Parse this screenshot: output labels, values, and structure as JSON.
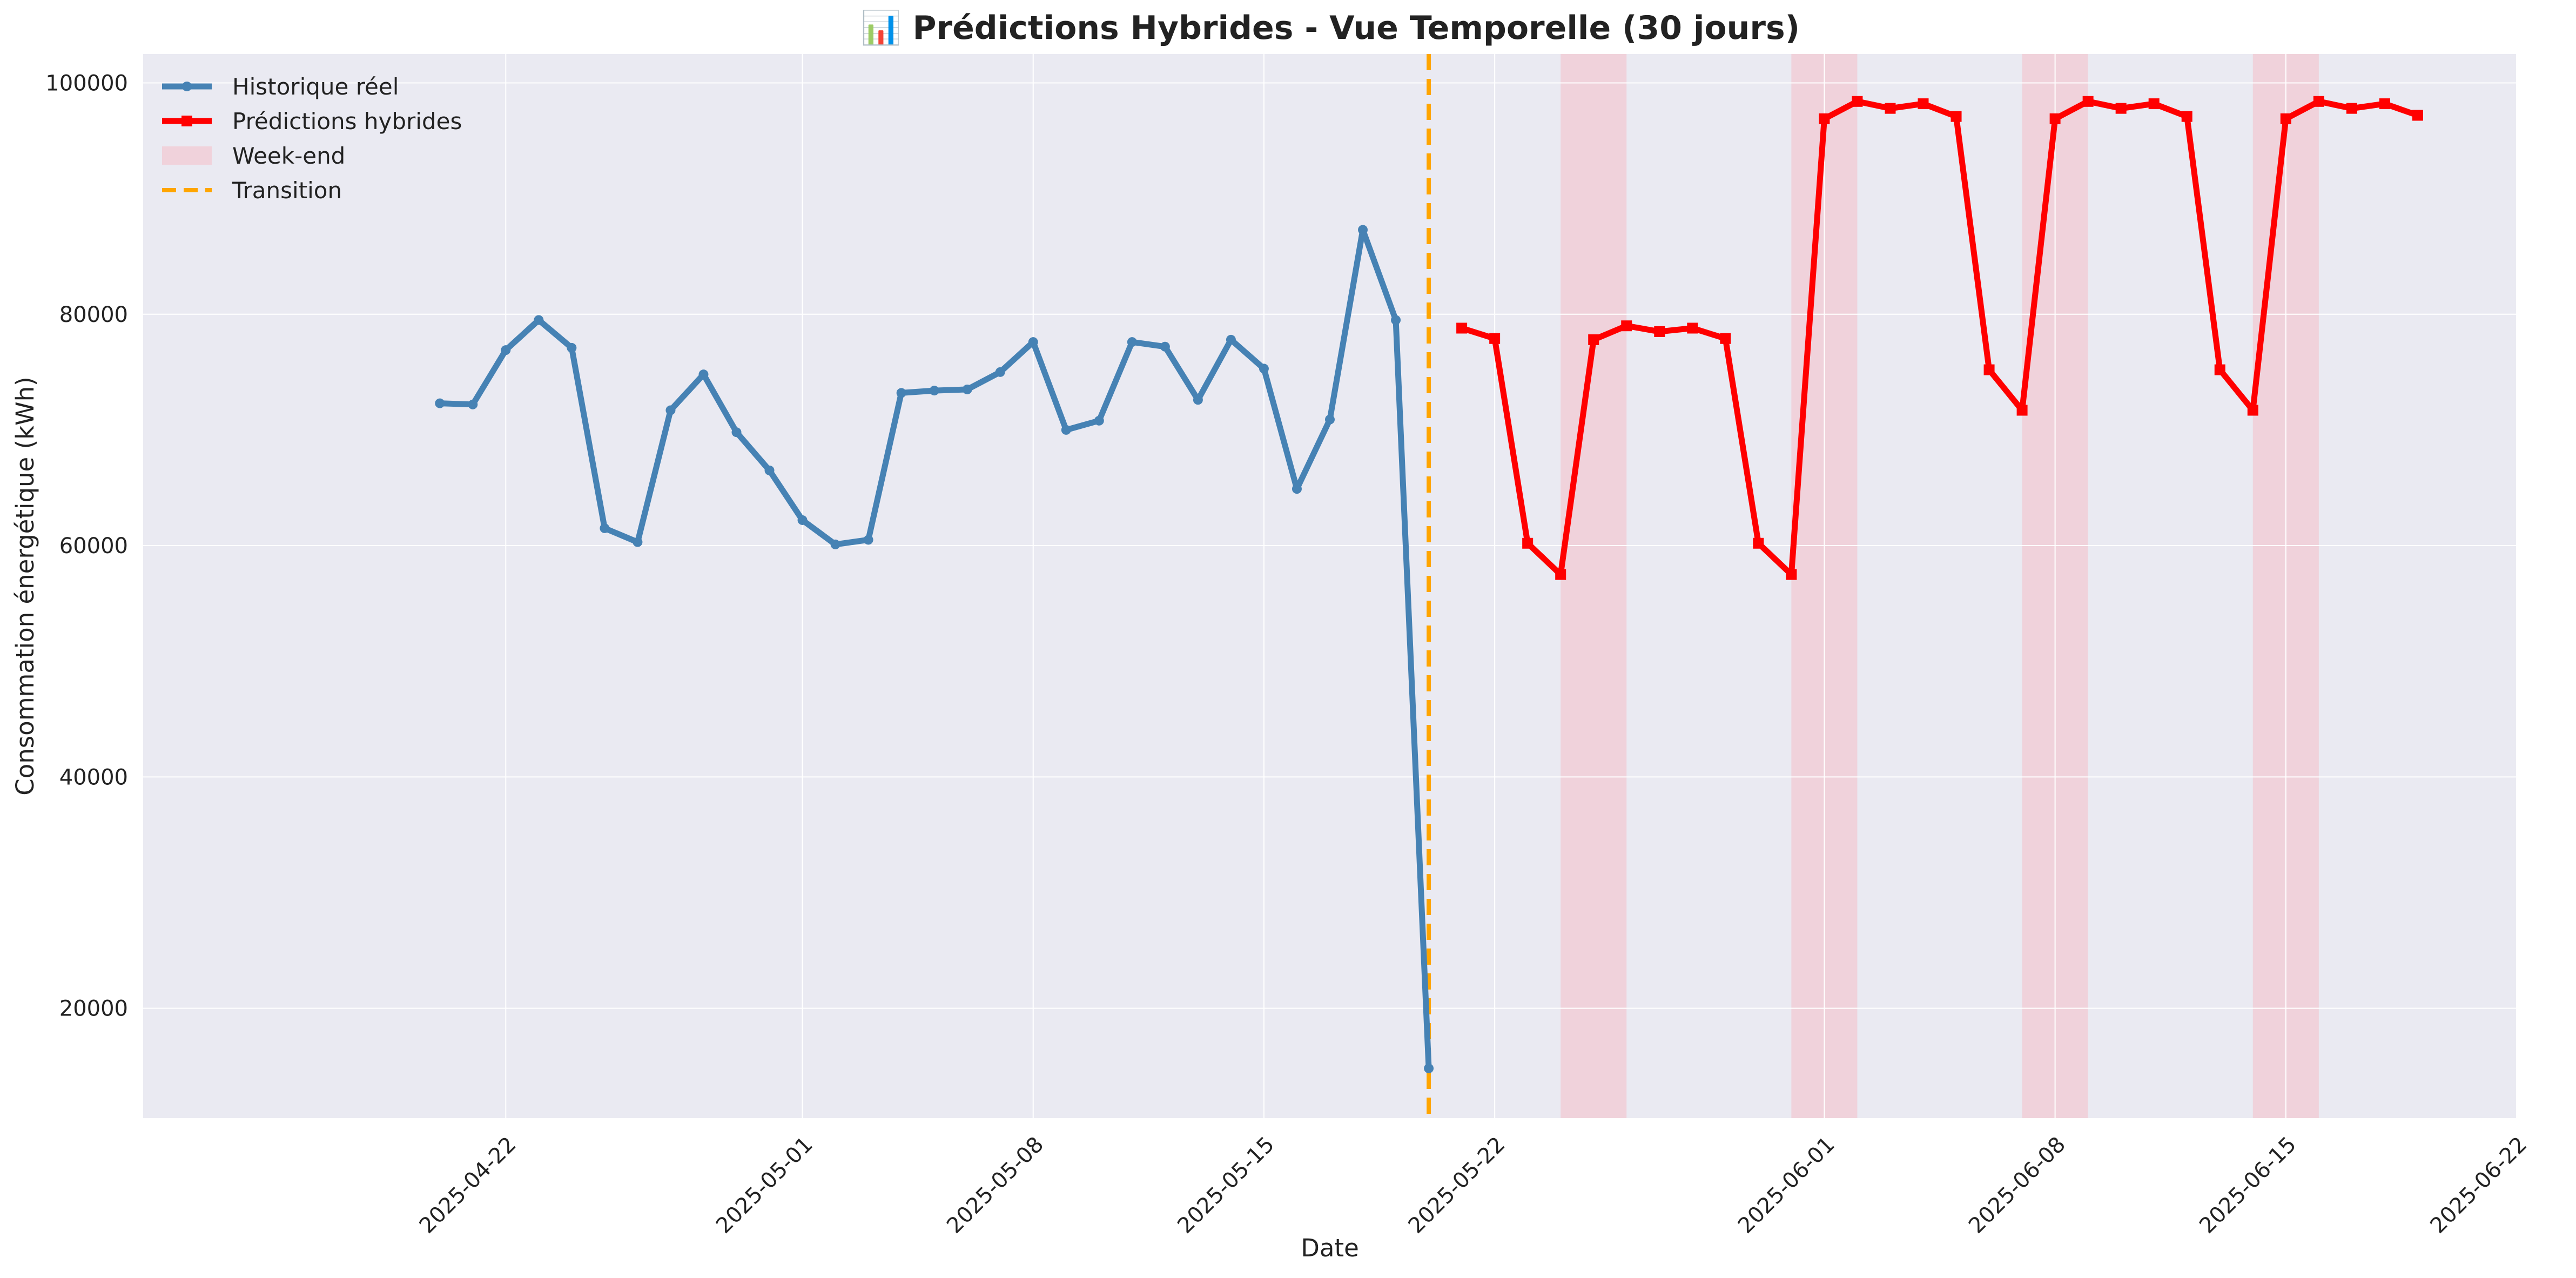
{
  "chart_data": {
    "type": "line",
    "title": "📊 Prédictions Hybrides - Vue Temporelle (30 jours)",
    "xlabel": "Date",
    "ylabel": "Consommation énergétique (kWh)",
    "xlim": [
      "2025-04-11",
      "2025-06-22"
    ],
    "ylim": [
      10500,
      102500
    ],
    "grid": true,
    "legend_position": "top-left",
    "xticks": [
      "2025-04-22",
      "2025-05-01",
      "2025-05-08",
      "2025-05-15",
      "2025-05-22",
      "2025-06-01",
      "2025-06-08",
      "2025-06-15",
      "2025-06-22"
    ],
    "yticks": [
      20000,
      40000,
      60000,
      80000,
      100000
    ],
    "series": [
      {
        "name": "Historique réel",
        "color": "#4682B4",
        "marker": "circle",
        "x": [
          "2025-04-20",
          "2025-04-21",
          "2025-04-22",
          "2025-04-23",
          "2025-04-24",
          "2025-04-25",
          "2025-04-26",
          "2025-04-27",
          "2025-04-28",
          "2025-04-29",
          "2025-04-30",
          "2025-05-01",
          "2025-05-02",
          "2025-05-03",
          "2025-05-04",
          "2025-05-05",
          "2025-05-06",
          "2025-05-07",
          "2025-05-08",
          "2025-05-09",
          "2025-05-10",
          "2025-05-11",
          "2025-05-12",
          "2025-05-13",
          "2025-05-14",
          "2025-05-15",
          "2025-05-16",
          "2025-05-17",
          "2025-05-18",
          "2025-05-19",
          "2025-05-20"
        ],
        "values": [
          72300,
          72200,
          76900,
          79500,
          77100,
          61500,
          60300,
          71700,
          74800,
          69800,
          66500,
          62200,
          60100,
          60500,
          73200,
          73400,
          73500,
          75000,
          77600,
          70000,
          70800,
          77600,
          77200,
          72600,
          77800,
          75300,
          64900,
          70900,
          87300,
          79500,
          14800
        ]
      },
      {
        "name": "Prédictions hybrides",
        "color": "#FF0000",
        "marker": "square",
        "x": [
          "2025-05-21",
          "2025-05-22",
          "2025-05-23",
          "2025-05-24",
          "2025-05-25",
          "2025-05-26",
          "2025-05-27",
          "2025-05-28",
          "2025-05-29",
          "2025-05-30",
          "2025-05-31",
          "2025-06-01",
          "2025-06-02",
          "2025-06-03",
          "2025-06-04",
          "2025-06-05",
          "2025-06-06",
          "2025-06-07",
          "2025-06-08",
          "2025-06-09",
          "2025-06-10",
          "2025-06-11",
          "2025-06-12",
          "2025-06-13",
          "2025-06-14",
          "2025-06-15",
          "2025-06-16",
          "2025-06-17",
          "2025-06-18",
          "2025-06-19"
        ],
        "values": [
          78800,
          77900,
          60200,
          57500,
          77800,
          79000,
          78500,
          78800,
          77900,
          60200,
          57500,
          96900,
          98400,
          97800,
          98200,
          97100,
          75200,
          71700,
          96900,
          98400,
          97800,
          98200,
          97100,
          75200,
          71700,
          96900,
          98400,
          97800,
          98200,
          97200
        ]
      }
    ],
    "weekend_spans": [
      {
        "start": "2025-05-24",
        "end": "2025-05-26"
      },
      {
        "start": "2025-05-31",
        "end": "2025-06-02"
      },
      {
        "start": "2025-06-07",
        "end": "2025-06-09"
      },
      {
        "start": "2025-06-14",
        "end": "2025-06-16"
      }
    ],
    "transition": {
      "x": "2025-05-20",
      "color": "#FFA500"
    },
    "legend": [
      {
        "label": "Historique réel",
        "kind": "line-circle",
        "color": "#4682B4"
      },
      {
        "label": "Prédictions hybrides",
        "kind": "line-square",
        "color": "#FF0000"
      },
      {
        "label": "Week-end",
        "kind": "patch",
        "color": "#F4C2CC"
      },
      {
        "label": "Transition",
        "kind": "dashed",
        "color": "#FFA500"
      }
    ],
    "colors": {
      "plot_background": "#EAEAF2",
      "grid": "#FFFFFF",
      "weekend": "#F4C2CC"
    }
  }
}
